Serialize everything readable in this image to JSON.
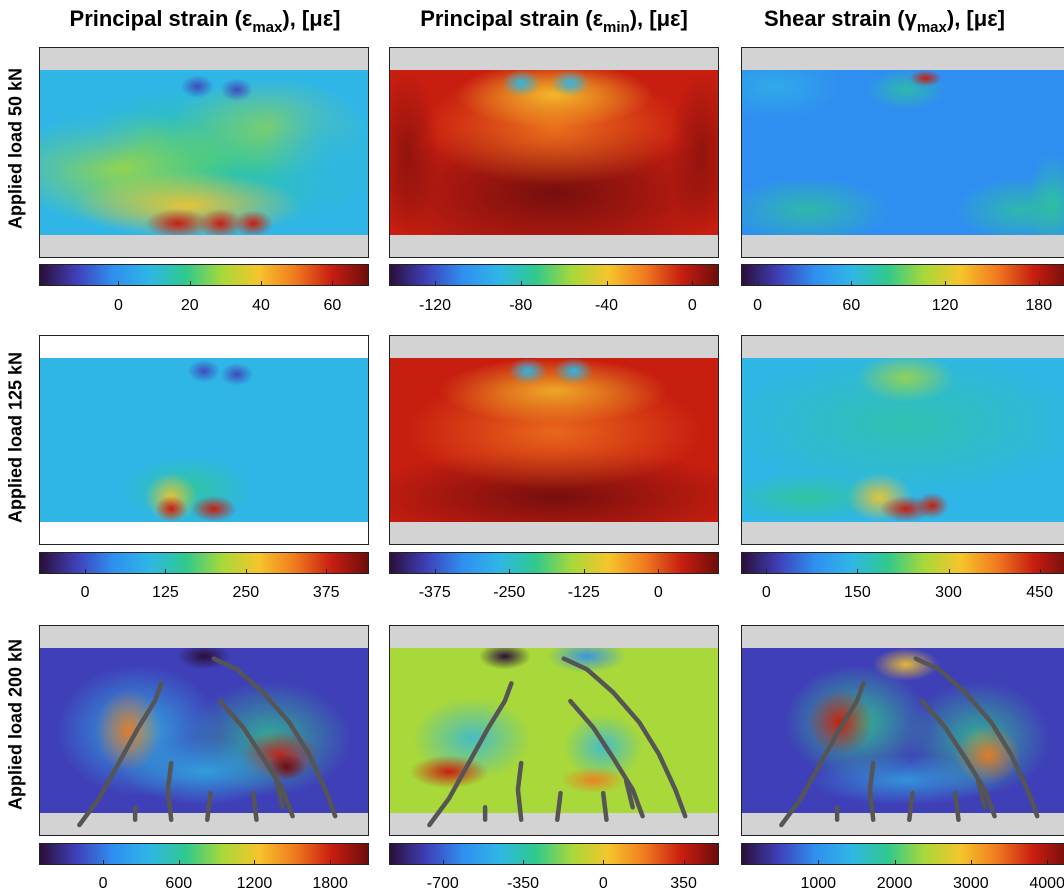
{
  "column_titles": [
    {
      "pre": "Principal strain (ε",
      "sub": "max",
      "post": "), [με]"
    },
    {
      "pre": "Principal strain (ε",
      "sub": "min",
      "post": "), [με]"
    },
    {
      "pre": "Shear strain (γ",
      "sub": "max",
      "post": "), [με]"
    }
  ],
  "row_titles": [
    "Applied load 50 kN",
    "Applied load 125 kN",
    "Applied load 200 kN"
  ],
  "colors": {
    "colormap": [
      "#2b0f3a",
      "#3f3fb8",
      "#2f8ff0",
      "#2fb6e6",
      "#2fc98e",
      "#a8d83a",
      "#f5c52c",
      "#f07a1e",
      "#c81e10",
      "#6e0d0d"
    ],
    "support_gray": "#d3d3d3",
    "crack": "#555555"
  },
  "chart_data": [
    {
      "type": "heatmap",
      "row": "Applied load 50 kN",
      "column": "Principal strain (εmax), [με]",
      "colorbar_ticks": [
        "0",
        "20",
        "40",
        "60"
      ],
      "colorbar_range": [
        -22,
        70
      ]
    },
    {
      "type": "heatmap",
      "row": "Applied load 50 kN",
      "column": "Principal strain (εmin), [με]",
      "colorbar_ticks": [
        "-120",
        "-80",
        "-40",
        "0"
      ],
      "colorbar_range": [
        -141,
        12
      ]
    },
    {
      "type": "heatmap",
      "row": "Applied load 50 kN",
      "column": "Shear strain (γmax), [με]",
      "colorbar_ticks": [
        "0",
        "60",
        "120",
        "180"
      ],
      "colorbar_range": [
        -10,
        200
      ]
    },
    {
      "type": "heatmap",
      "row": "Applied load 125 kN",
      "column": "Principal strain (εmax), [με]",
      "colorbar_ticks": [
        "0",
        "125",
        "250",
        "375"
      ],
      "colorbar_range": [
        -70,
        440
      ]
    },
    {
      "type": "heatmap",
      "row": "Applied load 125 kN",
      "column": "Principal strain (εmin), [με]",
      "colorbar_ticks": [
        "-375",
        "-250",
        "-125",
        "0"
      ],
      "colorbar_range": [
        -450,
        100
      ]
    },
    {
      "type": "heatmap",
      "row": "Applied load 125 kN",
      "column": "Shear strain (γmax), [με]",
      "colorbar_ticks": [
        "0",
        "150",
        "300",
        "450"
      ],
      "colorbar_range": [
        -40,
        500
      ]
    },
    {
      "type": "heatmap",
      "row": "Applied load 200 kN",
      "column": "Principal strain (εmax), [με]",
      "colorbar_ticks": [
        "0",
        "600",
        "1200",
        "1800"
      ],
      "colorbar_range": [
        -500,
        2100
      ],
      "cracks_overlaid": true
    },
    {
      "type": "heatmap",
      "row": "Applied load 200 kN",
      "column": "Principal strain (εmin), [με]",
      "colorbar_ticks": [
        "-700",
        "-350",
        "0",
        "350"
      ],
      "colorbar_range": [
        -930,
        500
      ],
      "cracks_overlaid": true
    },
    {
      "type": "heatmap",
      "row": "Applied load 200 kN",
      "column": "Shear strain (γmax), [με]",
      "colorbar_ticks": [
        "1000",
        "2000",
        "3000",
        "4000"
      ],
      "colorbar_range": [
        0,
        4300
      ],
      "cracks_overlaid": true
    }
  ]
}
